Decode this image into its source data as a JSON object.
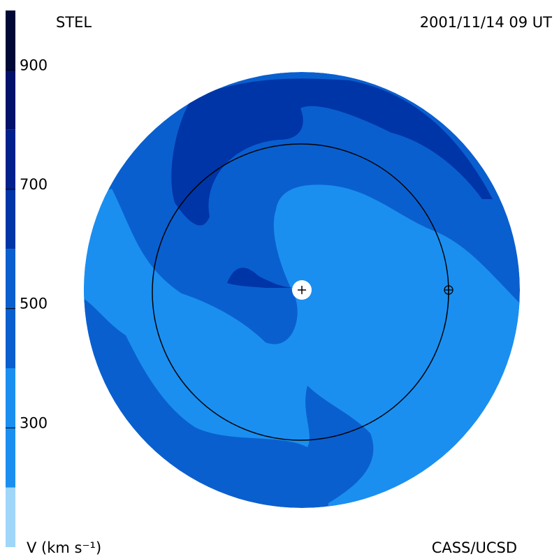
{
  "title_left": "STEL",
  "timestamp": "2001/11/14 09 UT",
  "credit": "CASS/UCSD",
  "colorbar": {
    "label": "V (km s⁻¹)",
    "lim": [
      100,
      1000
    ],
    "ticks": [
      300,
      500,
      700,
      900
    ],
    "levels": [
      100,
      200,
      400,
      600,
      700,
      800,
      900,
      1000
    ],
    "colors": [
      "#a0d6f8",
      "#1a8ff0",
      "#0a5fcf",
      "#0035a8",
      "#00208c",
      "#00116a",
      "#000836"
    ]
  }
}
